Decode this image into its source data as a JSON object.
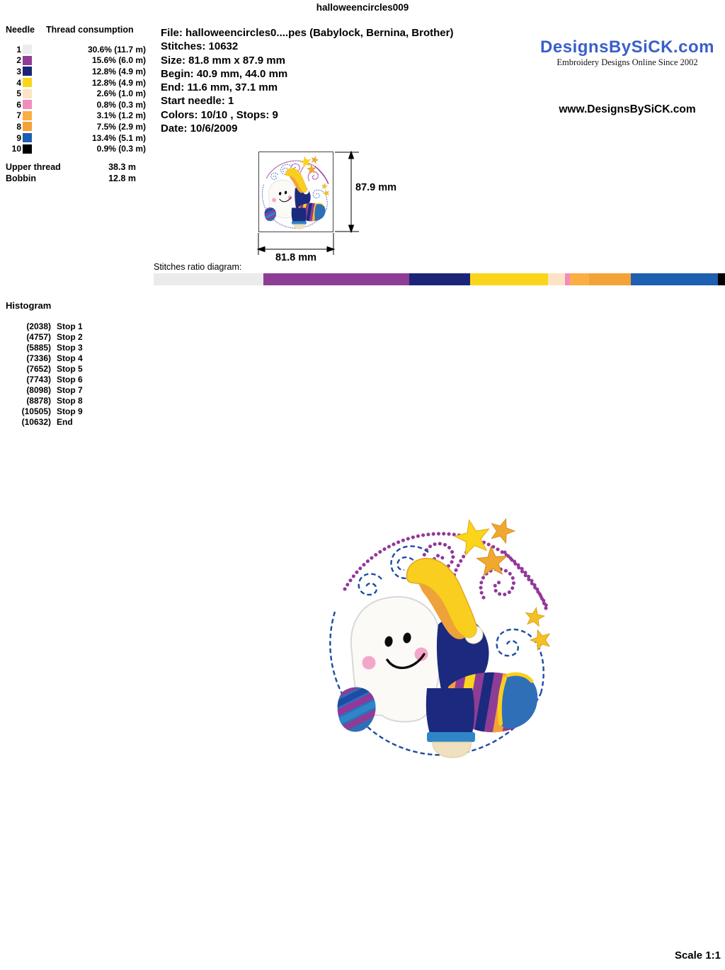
{
  "page_title": "halloweencircles009",
  "needle_table": {
    "header_needle": "Needle",
    "header_consumption": "Thread consumption",
    "rows": [
      {
        "number": "1",
        "color": "#ECECEC",
        "consumption": "30.6% (11.7 m)"
      },
      {
        "number": "2",
        "color": "#8E3D96",
        "consumption": "15.6% (6.0 m)"
      },
      {
        "number": "3",
        "color": "#1B2578",
        "consumption": "12.8% (4.9 m)"
      },
      {
        "number": "4",
        "color": "#FBD51A",
        "consumption": "12.8% (4.9 m)"
      },
      {
        "number": "5",
        "color": "#FCE3C6",
        "consumption": "2.6% (1.0 m)"
      },
      {
        "number": "6",
        "color": "#F28CBE",
        "consumption": "0.8% (0.3 m)"
      },
      {
        "number": "7",
        "color": "#FBAE42",
        "consumption": "3.1% (1.2 m)"
      },
      {
        "number": "8",
        "color": "#F2A239",
        "consumption": "7.5% (2.9 m)"
      },
      {
        "number": "9",
        "color": "#1D5FB0",
        "consumption": "13.4% (5.1 m)"
      },
      {
        "number": "10",
        "color": "#000000",
        "consumption": "0.9% (0.3 m)"
      }
    ],
    "upper_thread_label": "Upper thread",
    "upper_thread_value": "38.3 m",
    "bobbin_label": "Bobbin",
    "bobbin_value": "12.8 m"
  },
  "file_info": {
    "file": "File: halloweencircles0....pes  (Babylock, Bernina, Brother)",
    "stitches": "Stitches: 10632",
    "size": "Size: 81.8 mm x 87.9 mm",
    "begin": "Begin: 40.9 mm, 44.0 mm",
    "end": "End: 11.6 mm, 37.1 mm",
    "start_needle": "Start needle: 1",
    "colors": "Colors: 10/10 , Stops: 9",
    "date": "Date: 10/6/2009"
  },
  "branding": {
    "logo_text": "DesignsBySiCK.com",
    "logo_color": "#3A5FC8",
    "logo_tagline": "Embroidery Designs Online Since 2002",
    "website": "www.DesignsBySiCK.com"
  },
  "preview": {
    "height_label": "87.9 mm",
    "width_label": "81.8 mm"
  },
  "ratio_diagram": {
    "label": "Stitches ratio diagram:",
    "segments": [
      {
        "color": "#EBEBEB",
        "width_pct": 19.17
      },
      {
        "color": "#8E3D96",
        "width_pct": 25.57
      },
      {
        "color": "#1B2578",
        "width_pct": 10.61
      },
      {
        "color": "#FBD51A",
        "width_pct": 13.65
      },
      {
        "color": "#FCE3C6",
        "width_pct": 2.97
      },
      {
        "color": "#F28CBE",
        "width_pct": 0.86
      },
      {
        "color": "#FBAE42",
        "width_pct": 3.34
      },
      {
        "color": "#F2A239",
        "width_pct": 7.34
      },
      {
        "color": "#1D5FB0",
        "width_pct": 15.3
      },
      {
        "color": "#000000",
        "width_pct": 1.19
      }
    ]
  },
  "histogram": {
    "title": "Histogram",
    "stops": [
      {
        "count": "(2038)",
        "label": "Stop 1"
      },
      {
        "count": "(4757)",
        "label": "Stop 2"
      },
      {
        "count": "(5885)",
        "label": "Stop 3"
      },
      {
        "count": "(7336)",
        "label": "Stop 4"
      },
      {
        "count": "(7652)",
        "label": "Stop 5"
      },
      {
        "count": "(7743)",
        "label": "Stop 6"
      },
      {
        "count": "(8098)",
        "label": "Stop 7"
      },
      {
        "count": "(8878)",
        "label": "Stop 8"
      },
      {
        "count": "(10505)",
        "label": "Stop 9"
      },
      {
        "count": "(10632)",
        "label": "End"
      }
    ]
  },
  "scale_label": "Scale 1:1"
}
